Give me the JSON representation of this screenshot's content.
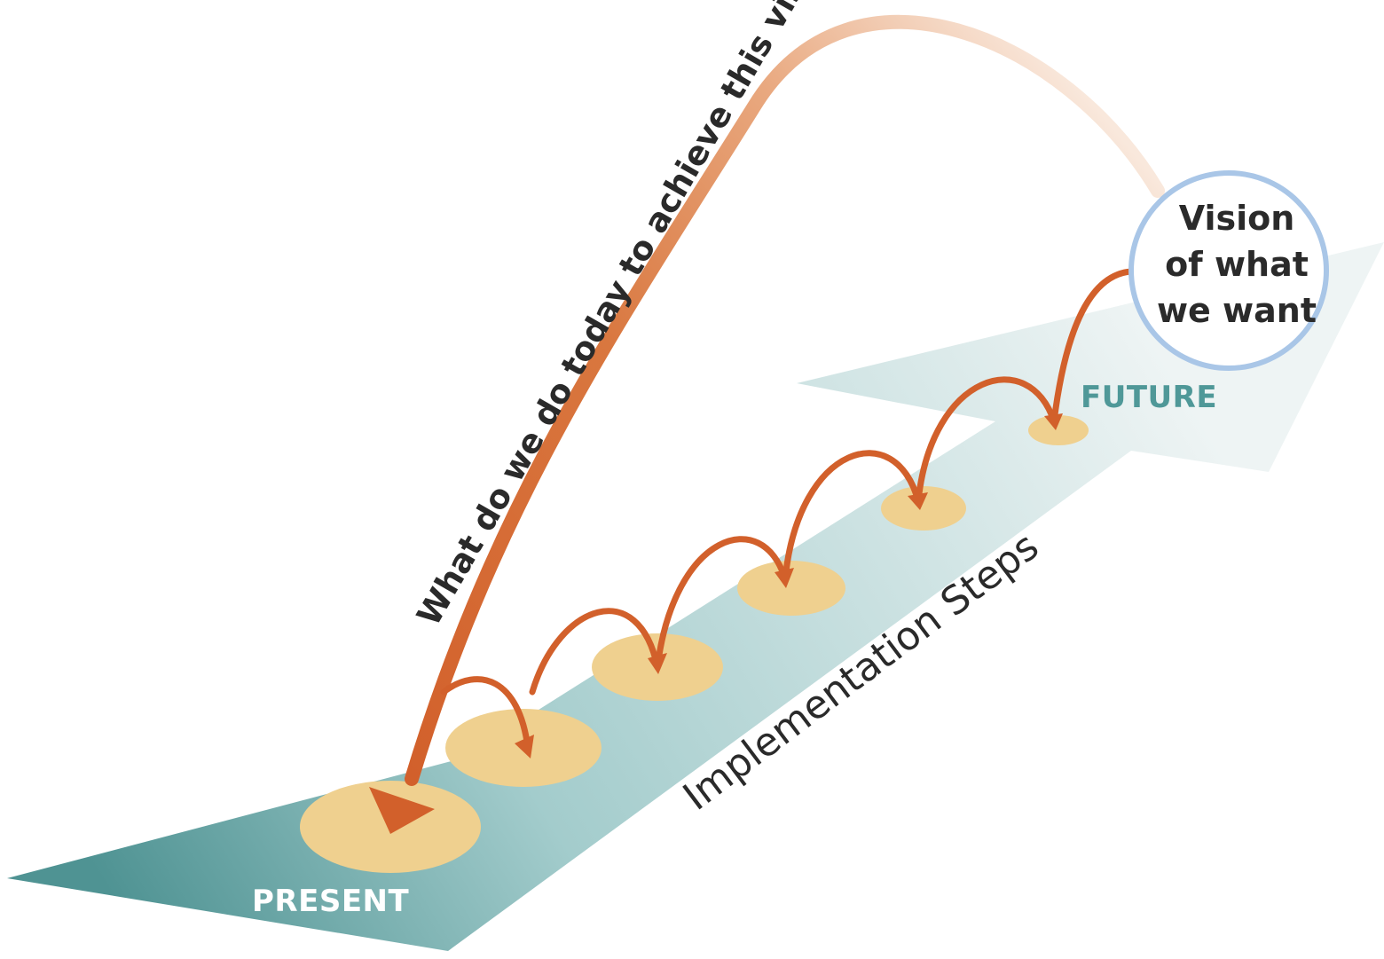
{
  "diagram": {
    "present_label": "PRESENT",
    "future_label": "FUTURE",
    "steps_label": "Implementation Steps",
    "question_label": "What do we do today to achieve this vision?",
    "vision": {
      "line1": "Vision",
      "line2": "of what",
      "line3": "we want"
    },
    "step_count": 6
  },
  "colors": {
    "path_dark": "#4f9393",
    "path_mid": "#a3cccc",
    "path_light": "#e6f0f0",
    "step_fill": "#efd08f",
    "arrow_orange": "#d2602b",
    "arc_light": "#f7dcc6",
    "vision_border": "#a9c6e7",
    "text_dark": "#2a2a2a",
    "present_text": "#ffffff",
    "future_text": "#4f9898"
  }
}
